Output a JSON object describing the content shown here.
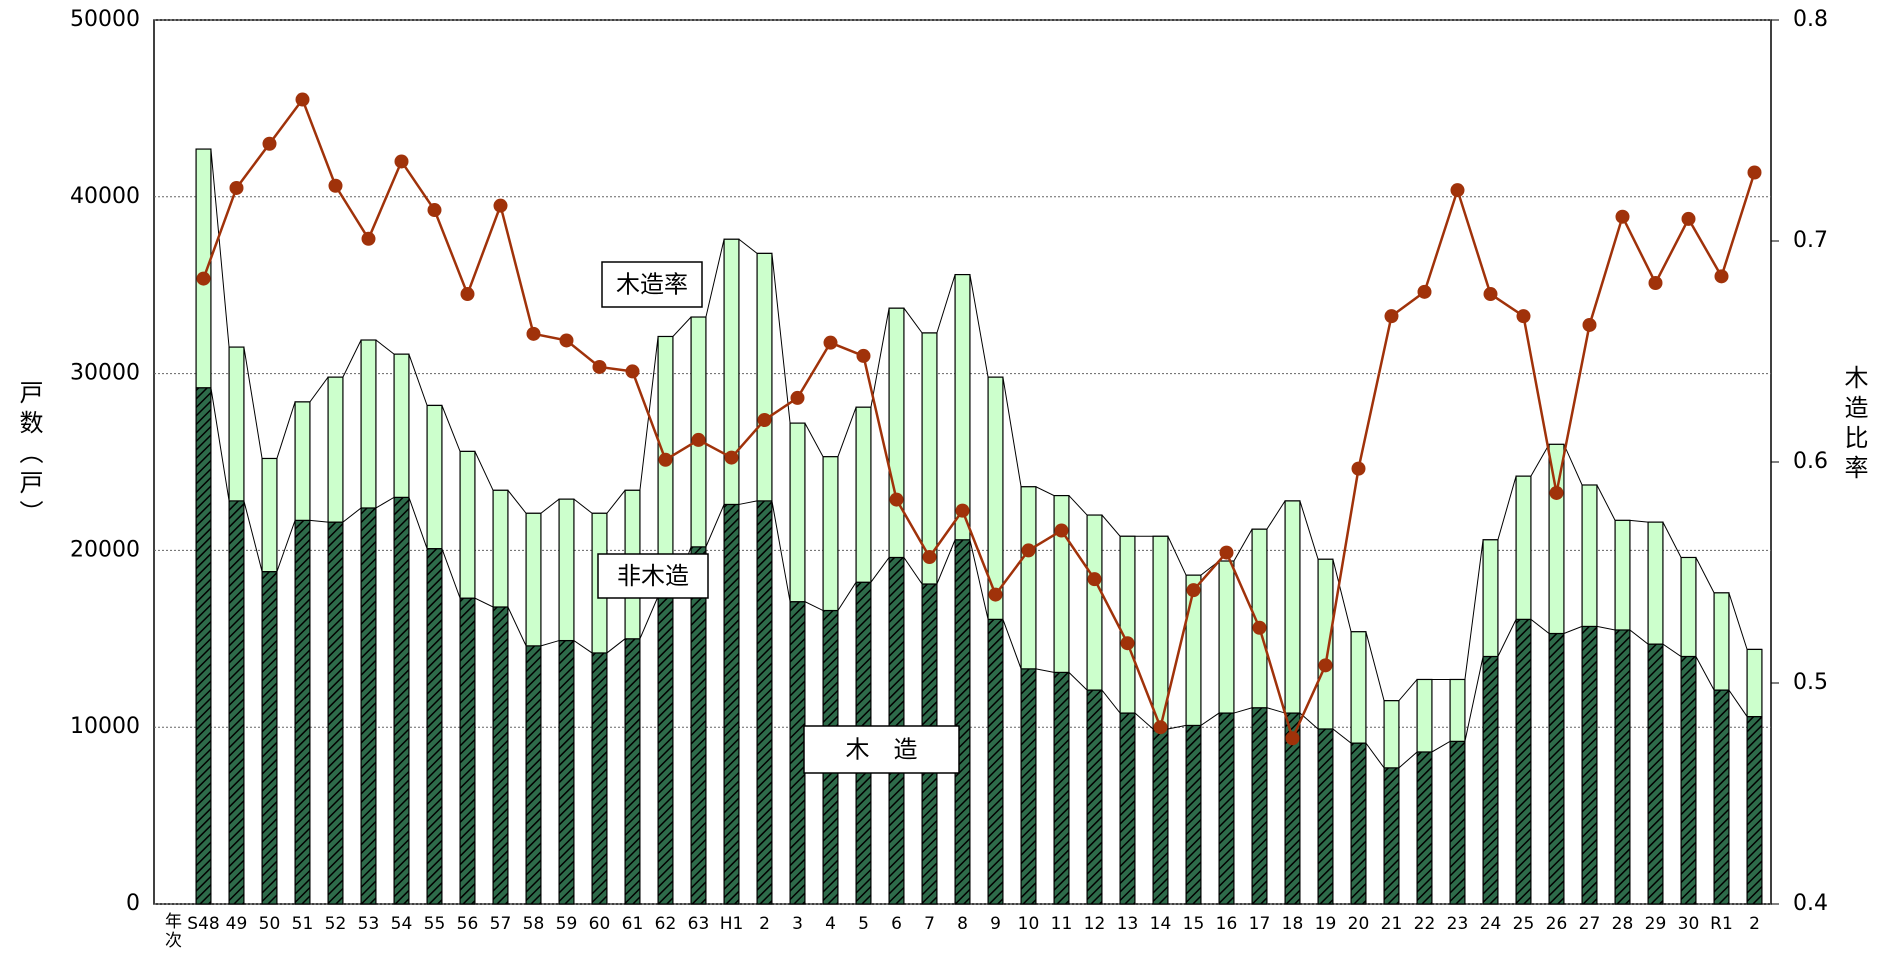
{
  "chart_data": {
    "type": "bar",
    "x_label": "年次",
    "y_label": "戸数（戸）",
    "y2_label": "木造比率",
    "categories": [
      "S48",
      "49",
      "50",
      "51",
      "52",
      "53",
      "54",
      "55",
      "56",
      "57",
      "58",
      "59",
      "60",
      "61",
      "62",
      "63",
      "H1",
      "2",
      "3",
      "4",
      "5",
      "6",
      "7",
      "8",
      "9",
      "10",
      "11",
      "12",
      "13",
      "14",
      "15",
      "16",
      "17",
      "18",
      "19",
      "20",
      "21",
      "22",
      "23",
      "24",
      "25",
      "26",
      "27",
      "28",
      "29",
      "30",
      "R1",
      "2"
    ],
    "series": [
      {
        "name": "木　造",
        "color": "#2e6b4a",
        "values": [
          29200,
          22800,
          18800,
          21700,
          21600,
          22400,
          23000,
          20100,
          17300,
          16800,
          14600,
          14900,
          14200,
          15000,
          17400,
          20200,
          22600,
          22800,
          17100,
          16600,
          18200,
          19600,
          18100,
          20600,
          16100,
          13300,
          13100,
          12100,
          10800,
          9900,
          10100,
          10800,
          11100,
          10800,
          9900,
          9100,
          7700,
          8600,
          9200,
          14000,
          16100,
          15300,
          15700,
          15500,
          14700,
          14000,
          12100,
          10600
        ]
      },
      {
        "name": "非木造",
        "color": "#ccffcc",
        "values": [
          13500,
          8700,
          6400,
          6700,
          8200,
          9500,
          8100,
          8100,
          8300,
          6600,
          7500,
          8000,
          7900,
          8400,
          14700,
          13000,
          15000,
          14000,
          10100,
          8700,
          9900,
          14100,
          14200,
          15000,
          13700,
          10300,
          10000,
          9900,
          10000,
          10900,
          8500,
          8600,
          10100,
          12000,
          9600,
          6300,
          3800,
          4100,
          3500,
          6600,
          8100,
          10700,
          8000,
          6200,
          6900,
          5600,
          5500,
          3800
        ]
      },
      {
        "name": "木造率",
        "color": "#a0320a",
        "type": "line",
        "axis": "y2",
        "values": [
          0.683,
          0.724,
          0.744,
          0.764,
          0.725,
          0.701,
          0.736,
          0.714,
          0.676,
          0.716,
          0.658,
          0.655,
          0.643,
          0.641,
          0.601,
          0.61,
          0.602,
          0.619,
          0.629,
          0.654,
          0.648,
          0.583,
          0.557,
          0.578,
          0.54,
          0.56,
          0.569,
          0.547,
          0.518,
          0.48,
          0.542,
          0.559,
          0.525,
          0.475,
          0.508,
          0.597,
          0.666,
          0.677,
          0.723,
          0.676,
          0.666,
          0.586,
          0.662,
          0.711,
          0.681,
          0.71,
          0.684,
          0.731
        ]
      }
    ],
    "ylim": [
      0,
      50000
    ],
    "yticks": [
      0,
      10000,
      20000,
      30000,
      40000,
      50000
    ],
    "y2lim": [
      0.4,
      0.8
    ],
    "y2ticks": [
      0.4,
      0.5,
      0.6,
      0.7,
      0.8
    ],
    "grid": true
  }
}
